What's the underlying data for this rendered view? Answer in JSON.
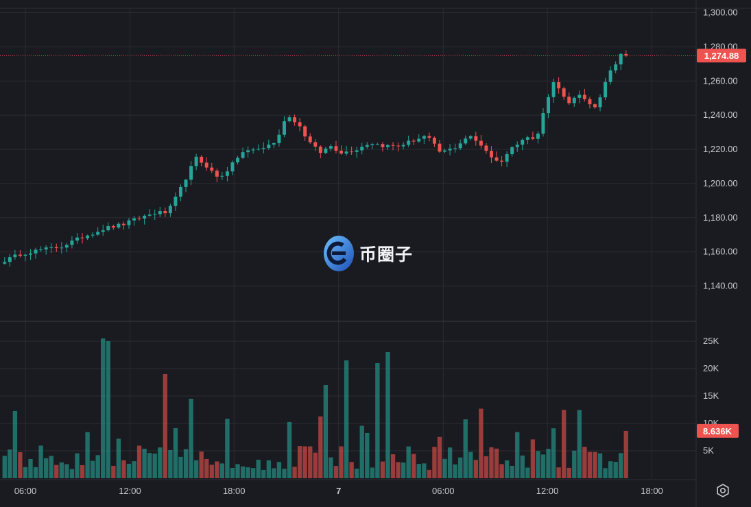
{
  "watermark": {
    "text": "币圈子",
    "icon": "coin-logo-icon"
  },
  "settings": {
    "icon": "settings-gear-icon"
  },
  "colors": {
    "background": "#1a1b20",
    "grid": "#2a2c33",
    "up": "#26a69a",
    "down": "#ef5350",
    "axis_text": "#c7c9d1",
    "price_line": "#ef5350"
  },
  "last_price_label": "1,274.88",
  "last_volume_label": "8.636K",
  "chart_data": [
    {
      "type": "candlestick",
      "price_axis": {
        "ticks": [
          1140,
          1160,
          1180,
          1200,
          1220,
          1240,
          1260,
          1280,
          1300
        ],
        "tick_labels": [
          "1,140.00",
          "1,160.00",
          "1,180.00",
          "1,200.00",
          "1,220.00",
          "1,240.00",
          "1,260.00",
          "1,280.00",
          "1,300.00"
        ],
        "range": [
          1125,
          1305
        ]
      },
      "time_axis": {
        "tick_labels": [
          "06:00",
          "12:00",
          "18:00",
          "7",
          "06:00",
          "12:00",
          "18:00"
        ],
        "bar_interval_minutes": 15,
        "first_bar": "04:30",
        "total_bars": 151
      },
      "anchors": [
        [
          0,
          1155
        ],
        [
          6,
          1159
        ],
        [
          12,
          1161
        ],
        [
          20,
          1163
        ],
        [
          28,
          1169
        ],
        [
          36,
          1174
        ],
        [
          42,
          1176
        ],
        [
          48,
          1180
        ],
        [
          54,
          1183
        ],
        [
          58,
          1183
        ],
        [
          62,
          1195
        ],
        [
          68,
          1215
        ],
        [
          72,
          1210
        ],
        [
          76,
          1203
        ],
        [
          80,
          1209
        ],
        [
          84,
          1218
        ],
        [
          92,
          1221
        ],
        [
          97,
          1225
        ],
        [
          100,
          1240
        ],
        [
          104,
          1236
        ],
        [
          108,
          1225
        ],
        [
          112,
          1218
        ],
        [
          116,
          1222
        ],
        [
          120,
          1218
        ],
        [
          125,
          1220
        ],
        [
          130,
          1224
        ],
        [
          135,
          1222
        ],
        [
          140,
          1222
        ],
        [
          145,
          1225
        ],
        [
          150,
          1228
        ],
        [
          155,
          1218
        ],
        [
          160,
          1221
        ],
        [
          165,
          1228
        ],
        [
          170,
          1222
        ],
        [
          174,
          1214
        ],
        [
          176,
          1212
        ],
        [
          180,
          1220
        ],
        [
          185,
          1228
        ],
        [
          189,
          1225
        ],
        [
          193,
          1250
        ],
        [
          196,
          1262
        ],
        [
          198,
          1252
        ],
        [
          201,
          1246
        ],
        [
          204,
          1252
        ],
        [
          207,
          1249
        ],
        [
          210,
          1244
        ],
        [
          212,
          1250
        ],
        [
          214,
          1262
        ],
        [
          216,
          1268
        ],
        [
          218,
          1272
        ],
        [
          220,
          1280
        ],
        [
          221,
          1274.88
        ]
      ],
      "last_close": 1274.88
    },
    {
      "type": "bar",
      "name": "volume",
      "value_axis": {
        "ticks": [
          5000,
          10000,
          15000,
          20000,
          25000
        ],
        "tick_labels": [
          "5K",
          "10K",
          "15K",
          "20K",
          "25K"
        ]
      },
      "peaks": [
        {
          "bar": 35,
          "value": 25500
        },
        {
          "bar": 37,
          "value": 25000
        },
        {
          "bar": 57,
          "value": 19000
        },
        {
          "bar": 66,
          "value": 14500
        },
        {
          "bar": 114,
          "value": 17000
        },
        {
          "bar": 122,
          "value": 21500
        },
        {
          "bar": 133,
          "value": 21000
        },
        {
          "bar": 136,
          "value": 23000
        }
      ],
      "last_value": 8636
    }
  ]
}
